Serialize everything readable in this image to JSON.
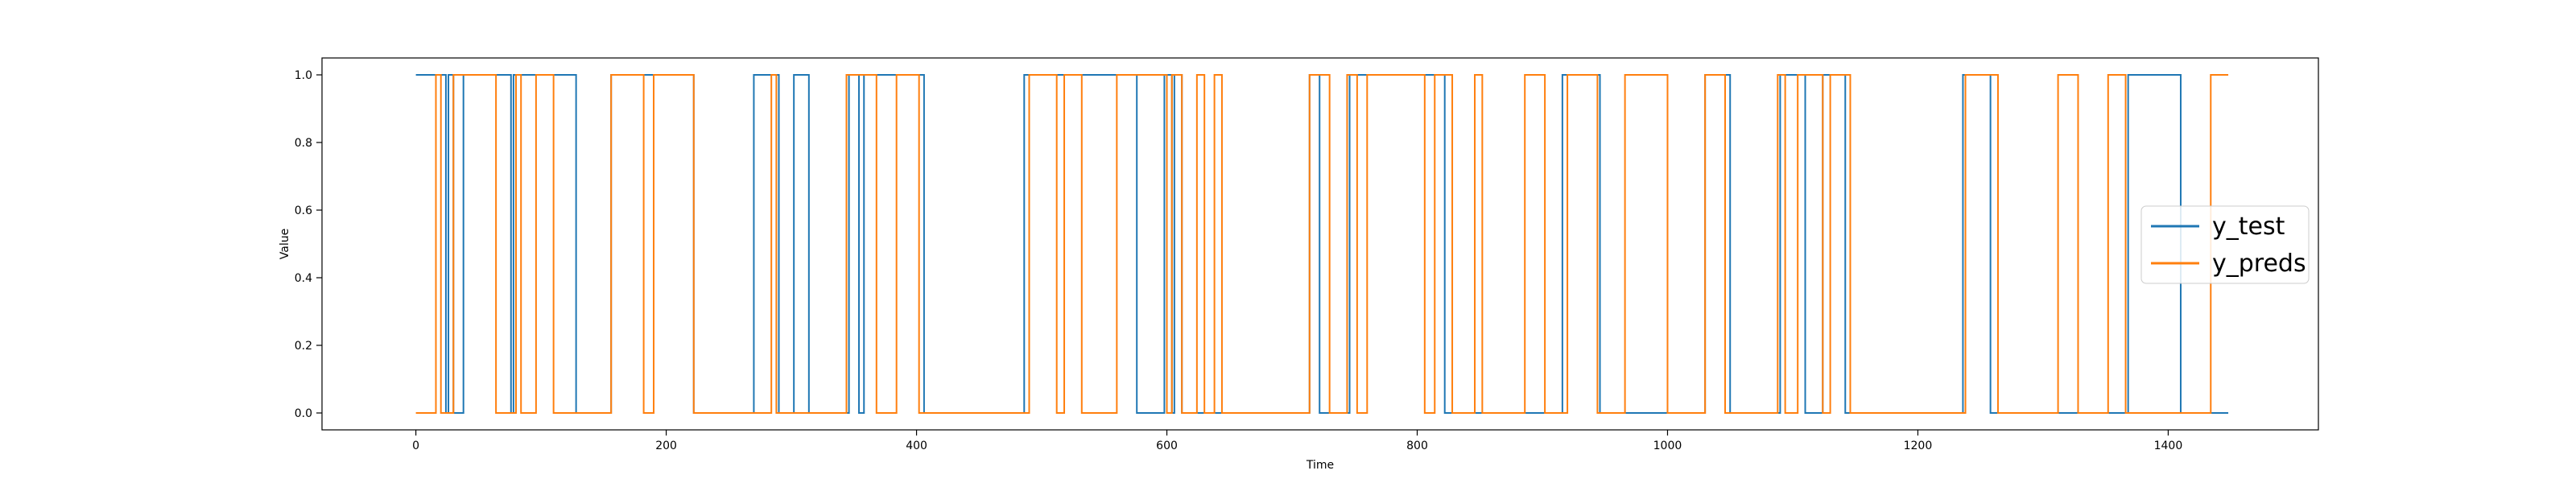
{
  "chart_data": {
    "type": "line",
    "drawstyle": "step",
    "title": "",
    "xlabel": "Time",
    "ylabel": "Value",
    "xlim": [
      -75,
      1520
    ],
    "ylim": [
      -0.05,
      1.05
    ],
    "xticks": [
      0,
      200,
      400,
      600,
      800,
      1000,
      1200,
      1400
    ],
    "yticks": [
      0.0,
      0.2,
      0.4,
      0.6,
      0.8,
      1.0
    ],
    "xtick_labels": [
      "0",
      "200",
      "400",
      "600",
      "800",
      "1000",
      "1200",
      "1400"
    ],
    "ytick_labels": [
      "0.0",
      "0.2",
      "0.4",
      "0.6",
      "0.8",
      "1.0"
    ],
    "grid": false,
    "legend_position": "center-right",
    "series": [
      {
        "name": "y_test",
        "color": "#1f77b4",
        "segments": [
          [
            0,
            1
          ],
          [
            24,
            0
          ],
          [
            26,
            1
          ],
          [
            30,
            0
          ],
          [
            38,
            1
          ],
          [
            76,
            0
          ],
          [
            78,
            1
          ],
          [
            128,
            0
          ],
          [
            156,
            1
          ],
          [
            222,
            0
          ],
          [
            270,
            1
          ],
          [
            290,
            0
          ],
          [
            302,
            1
          ],
          [
            314,
            0
          ],
          [
            346,
            1
          ],
          [
            354,
            0
          ],
          [
            358,
            1
          ],
          [
            406,
            0
          ],
          [
            486,
            1
          ],
          [
            576,
            0
          ],
          [
            598,
            1
          ],
          [
            604,
            0
          ],
          [
            606,
            1
          ],
          [
            612,
            0
          ],
          [
            714,
            1
          ],
          [
            722,
            0
          ],
          [
            746,
            1
          ],
          [
            822,
            0
          ],
          [
            916,
            1
          ],
          [
            946,
            0
          ],
          [
            1030,
            1
          ],
          [
            1050,
            0
          ],
          [
            1090,
            1
          ],
          [
            1110,
            0
          ],
          [
            1124,
            1
          ],
          [
            1142,
            0
          ],
          [
            1236,
            1
          ],
          [
            1258,
            0
          ],
          [
            1368,
            1
          ],
          [
            1410,
            0
          ],
          [
            1448,
            0
          ]
        ]
      },
      {
        "name": "y_preds",
        "color": "#ff7f0e",
        "segments": [
          [
            0,
            0
          ],
          [
            16,
            1
          ],
          [
            20,
            0
          ],
          [
            30,
            1
          ],
          [
            64,
            0
          ],
          [
            80,
            1
          ],
          [
            84,
            0
          ],
          [
            96,
            1
          ],
          [
            110,
            0
          ],
          [
            156,
            1
          ],
          [
            182,
            0
          ],
          [
            190,
            1
          ],
          [
            222,
            0
          ],
          [
            284,
            1
          ],
          [
            288,
            0
          ],
          [
            344,
            1
          ],
          [
            368,
            0
          ],
          [
            384,
            1
          ],
          [
            402,
            0
          ],
          [
            490,
            1
          ],
          [
            512,
            0
          ],
          [
            518,
            1
          ],
          [
            532,
            0
          ],
          [
            560,
            1
          ],
          [
            600,
            0
          ],
          [
            604,
            1
          ],
          [
            612,
            0
          ],
          [
            624,
            1
          ],
          [
            630,
            0
          ],
          [
            638,
            1
          ],
          [
            644,
            0
          ],
          [
            714,
            1
          ],
          [
            730,
            0
          ],
          [
            744,
            1
          ],
          [
            752,
            0
          ],
          [
            760,
            1
          ],
          [
            806,
            0
          ],
          [
            814,
            1
          ],
          [
            828,
            0
          ],
          [
            846,
            1
          ],
          [
            852,
            0
          ],
          [
            886,
            1
          ],
          [
            902,
            0
          ],
          [
            920,
            1
          ],
          [
            944,
            0
          ],
          [
            966,
            1
          ],
          [
            1000,
            0
          ],
          [
            1030,
            1
          ],
          [
            1046,
            0
          ],
          [
            1088,
            1
          ],
          [
            1094,
            0
          ],
          [
            1104,
            1
          ],
          [
            1124,
            0
          ],
          [
            1130,
            1
          ],
          [
            1146,
            0
          ],
          [
            1238,
            1
          ],
          [
            1264,
            0
          ],
          [
            1312,
            1
          ],
          [
            1328,
            0
          ],
          [
            1352,
            1
          ],
          [
            1366,
            0
          ],
          [
            1434,
            1
          ],
          [
            1448,
            1
          ]
        ]
      }
    ]
  }
}
